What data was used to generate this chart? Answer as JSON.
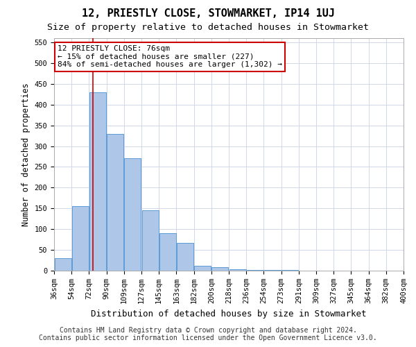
{
  "title": "12, PRIESTLY CLOSE, STOWMARKET, IP14 1UJ",
  "subtitle": "Size of property relative to detached houses in Stowmarket",
  "xlabel": "Distribution of detached houses by size in Stowmarket",
  "ylabel": "Number of detached properties",
  "bins": [
    "36sqm",
    "54sqm",
    "72sqm",
    "90sqm",
    "109sqm",
    "127sqm",
    "145sqm",
    "163sqm",
    "182sqm",
    "200sqm",
    "218sqm",
    "236sqm",
    "254sqm",
    "273sqm",
    "291sqm",
    "309sqm",
    "327sqm",
    "345sqm",
    "364sqm",
    "382sqm",
    "400sqm"
  ],
  "bar_values": [
    30,
    155,
    430,
    330,
    270,
    145,
    90,
    67,
    12,
    8,
    4,
    2,
    1,
    1,
    0,
    0,
    0,
    0,
    0,
    0
  ],
  "bar_color": "#aec6e8",
  "bar_edgecolor": "#5b9bd5",
  "vline_bin_index": 2,
  "annotation_text": "12 PRIESTLY CLOSE: 76sqm\n← 15% of detached houses are smaller (227)\n84% of semi-detached houses are larger (1,302) →",
  "annotation_box_edgecolor": "#cc0000",
  "vline_color": "#cc0000",
  "ylim": [
    0,
    560
  ],
  "yticks": [
    0,
    50,
    100,
    150,
    200,
    250,
    300,
    350,
    400,
    450,
    500,
    550
  ],
  "footer_line1": "Contains HM Land Registry data © Crown copyright and database right 2024.",
  "footer_line2": "Contains public sector information licensed under the Open Government Licence v3.0.",
  "background_color": "#ffffff",
  "grid_color": "#d0d8e8",
  "title_fontsize": 11,
  "subtitle_fontsize": 9.5,
  "xlabel_fontsize": 9,
  "ylabel_fontsize": 8.5,
  "tick_fontsize": 7.5,
  "annotation_fontsize": 8,
  "footer_fontsize": 7
}
